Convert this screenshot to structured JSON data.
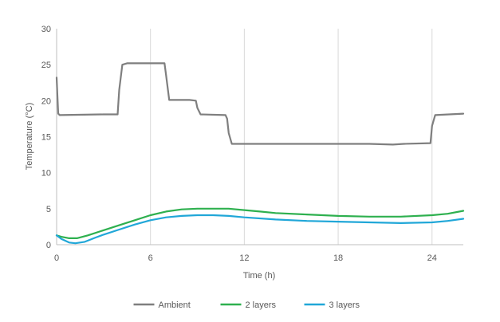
{
  "chart_data": {
    "type": "line",
    "title": "",
    "xlabel": "Time (h)",
    "ylabel": "Temperature (°C)",
    "xlim": [
      0,
      26
    ],
    "ylim": [
      0,
      30
    ],
    "xticks": [
      0,
      6,
      12,
      18,
      24
    ],
    "yticks": [
      0,
      5,
      10,
      15,
      20,
      25,
      30
    ],
    "grid": "vertical",
    "legend_position": "bottom",
    "series": [
      {
        "name": "Ambient",
        "color": "#7f7f7f",
        "x": [
          0,
          0.1,
          0.2,
          3,
          3.9,
          4.0,
          4.2,
          4.5,
          6.0,
          6.9,
          7.0,
          7.2,
          8.5,
          8.9,
          9.0,
          9.2,
          10.8,
          10.9,
          11.0,
          11.2,
          14,
          18,
          20,
          21.5,
          22.2,
          23.9,
          24.0,
          24.2,
          26
        ],
        "values": [
          23.2,
          18.2,
          18.0,
          18.1,
          18.1,
          21.5,
          25.0,
          25.2,
          25.2,
          25.2,
          23.5,
          20.1,
          20.1,
          20.0,
          19.0,
          18.1,
          18.0,
          17.5,
          15.5,
          14.0,
          14.0,
          14.0,
          14.0,
          13.9,
          14.0,
          14.1,
          16.5,
          18.0,
          18.2
        ]
      },
      {
        "name": "2 layers",
        "color": "#2eb04f",
        "x": [
          0,
          0.3,
          0.8,
          1.3,
          2,
          3,
          4,
          5,
          6,
          7,
          8,
          9,
          10,
          11,
          12,
          13,
          14,
          16,
          18,
          20,
          22,
          24,
          25,
          26
        ],
        "values": [
          1.3,
          1.1,
          0.9,
          0.9,
          1.3,
          2.0,
          2.7,
          3.4,
          4.1,
          4.6,
          4.9,
          5.0,
          5.0,
          5.0,
          4.8,
          4.6,
          4.4,
          4.2,
          4.0,
          3.9,
          3.9,
          4.1,
          4.3,
          4.7
        ]
      },
      {
        "name": "3 layers",
        "color": "#21a7d8",
        "x": [
          0,
          0.3,
          0.8,
          1.2,
          1.8,
          2.5,
          3,
          4,
          5,
          6,
          7,
          8,
          9,
          10,
          11,
          12,
          14,
          16,
          18,
          20,
          22,
          24,
          25,
          26
        ],
        "values": [
          1.3,
          0.8,
          0.3,
          0.2,
          0.4,
          1.0,
          1.4,
          2.1,
          2.8,
          3.4,
          3.8,
          4.0,
          4.1,
          4.1,
          4.0,
          3.8,
          3.5,
          3.3,
          3.2,
          3.1,
          3.0,
          3.1,
          3.3,
          3.6
        ]
      }
    ]
  }
}
